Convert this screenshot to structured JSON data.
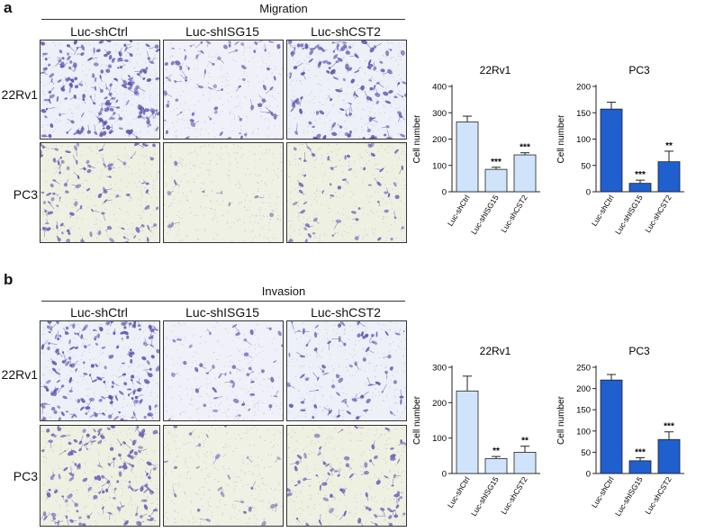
{
  "panels": [
    {
      "letter": "a",
      "title": "Migration",
      "columns": [
        "Luc-shCtrl",
        "Luc-shISG15",
        "Luc-shCST2"
      ],
      "rows": [
        "22Rv1",
        "PC3"
      ]
    },
    {
      "letter": "b",
      "title": "Invasion",
      "columns": [
        "Luc-shCtrl",
        "Luc-shISG15",
        "Luc-shCST2"
      ],
      "rows": [
        "22Rv1",
        "PC3"
      ]
    }
  ],
  "chart_data": [
    {
      "type": "bar",
      "panel": "a",
      "title": "22Rv1",
      "categories": [
        "Luc-shCtrl",
        "Luc-shISG15",
        "Luc-shCST2"
      ],
      "values": [
        265,
        85,
        140
      ],
      "errors": [
        22,
        8,
        8
      ],
      "significance": [
        "",
        "***",
        "***"
      ],
      "xlabel": "",
      "ylabel": "Cell number",
      "ylim": [
        0,
        400
      ],
      "yticks": [
        0,
        100,
        200,
        300,
        400
      ],
      "color": "#cfe4fb"
    },
    {
      "type": "bar",
      "panel": "a",
      "title": "PC3",
      "categories": [
        "Luc-shCtrl",
        "Luc-shISG15",
        "Luc-shCST2"
      ],
      "values": [
        157,
        16,
        57
      ],
      "errors": [
        13,
        6,
        20
      ],
      "significance": [
        "",
        "***",
        "**"
      ],
      "xlabel": "",
      "ylabel": "Cell number",
      "ylim": [
        0,
        200
      ],
      "yticks": [
        0,
        50,
        100,
        150,
        200
      ],
      "color": "#1f5fce"
    },
    {
      "type": "bar",
      "panel": "b",
      "title": "22Rv1",
      "categories": [
        "Luc-shCtrl",
        "Luc-shISG15",
        "Luc-shCST2"
      ],
      "values": [
        233,
        42,
        60
      ],
      "errors": [
        42,
        6,
        17
      ],
      "significance": [
        "",
        "**",
        "**"
      ],
      "xlabel": "",
      "ylabel": "Cell number",
      "ylim": [
        0,
        300
      ],
      "yticks": [
        0,
        100,
        200,
        300
      ],
      "color": "#cfe4fb"
    },
    {
      "type": "bar",
      "panel": "b",
      "title": "PC3",
      "categories": [
        "Luc-shCtrl",
        "Luc-shISG15",
        "Luc-shCST2"
      ],
      "values": [
        220,
        30,
        80
      ],
      "errors": [
        13,
        7,
        18
      ],
      "significance": [
        "",
        "***",
        "***"
      ],
      "xlabel": "",
      "ylabel": "Cell number",
      "ylim": [
        0,
        250
      ],
      "yticks": [
        0,
        50,
        100,
        150,
        200,
        250
      ],
      "color": "#1f5fce"
    }
  ]
}
